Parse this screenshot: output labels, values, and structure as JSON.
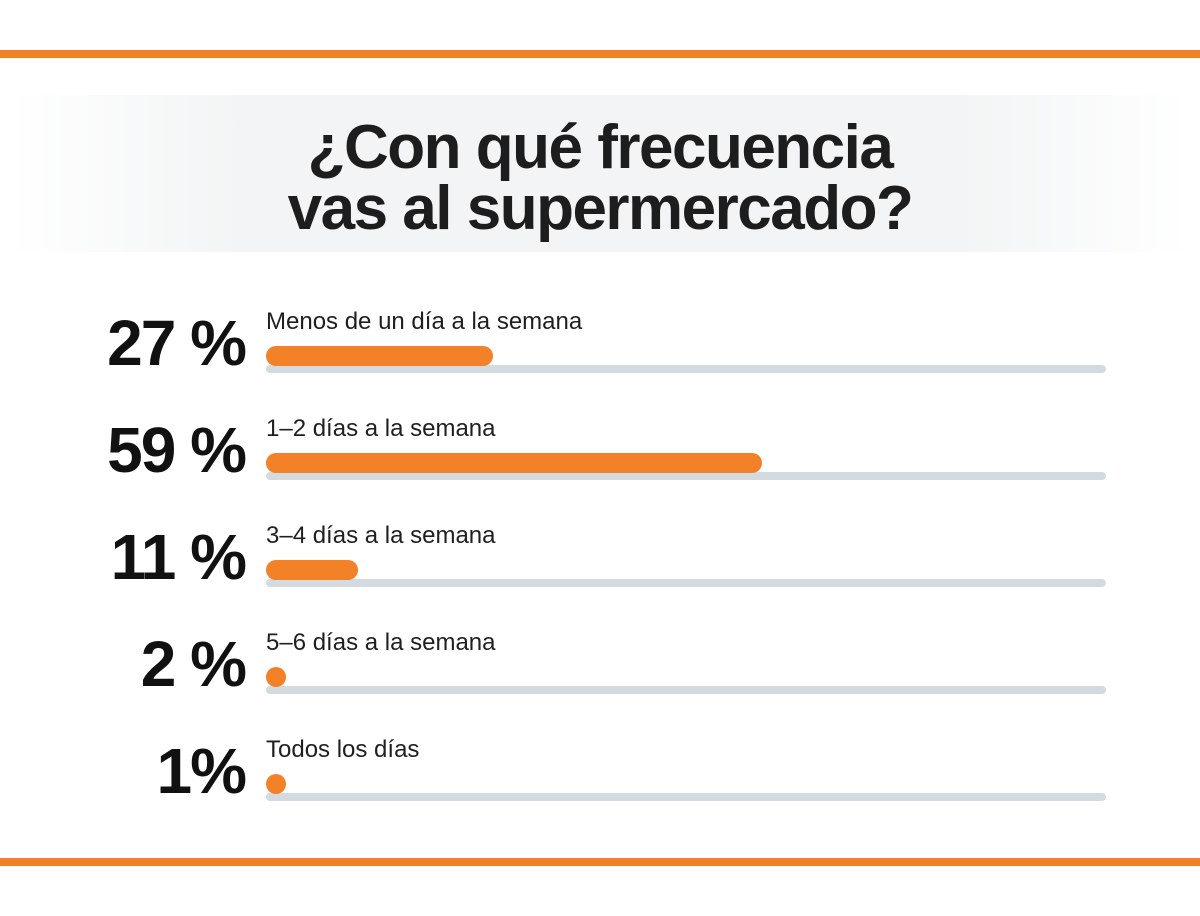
{
  "page": {
    "background_color": "#ffffff",
    "border_color": "#F28128",
    "banner_color": "#f2f4f5",
    "text_color": "#1d1d1d"
  },
  "title": {
    "line1": "¿Con qué frecuencia",
    "line2": "vas al supermercado?"
  },
  "chart_data": {
    "type": "bar",
    "orientation": "horizontal",
    "title": "¿Con qué frecuencia vas al supermercado?",
    "categories": [
      "Menos de un día a la semana",
      "1–2 días a la semana",
      "3–4 días a la semana",
      "5–6 días a la semana",
      "Todos los días"
    ],
    "values": [
      27,
      59,
      11,
      2,
      1
    ],
    "value_labels": [
      "27 %",
      "59 %",
      "11 %",
      "2 %",
      "1%"
    ],
    "unit": "%",
    "xlim": [
      0,
      100
    ],
    "grid": false,
    "legend": false,
    "bar_color": "#F28128",
    "track_color": "#D3DBE0",
    "value_label_color": "#111111",
    "category_label_color": "#1f1f1f"
  }
}
